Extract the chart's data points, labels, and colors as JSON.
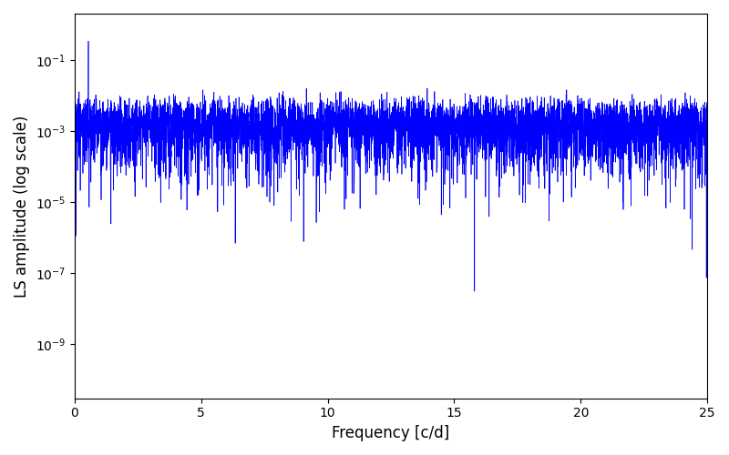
{
  "xlabel": "Frequency [c/d]",
  "ylabel": "LS amplitude (log scale)",
  "line_color": "#0000ff",
  "xlim": [
    0,
    25
  ],
  "ylim": [
    3e-11,
    2.0
  ],
  "freq_max": 25.0,
  "n_points": 6000,
  "seed": 42,
  "figsize": [
    8.0,
    5.0
  ],
  "dpi": 100,
  "linewidth": 0.5
}
